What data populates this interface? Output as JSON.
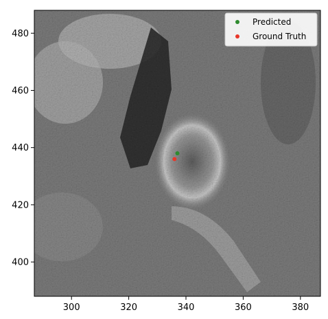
{
  "chart_data": {
    "type": "scatter",
    "title": "",
    "xlabel": "",
    "ylabel": "",
    "xlim": [
      287,
      387
    ],
    "ylim": [
      388,
      488
    ],
    "xticks": [
      300,
      320,
      340,
      360,
      380
    ],
    "yticks": [
      400,
      420,
      440,
      460,
      480
    ],
    "xtick_labels": [
      "300",
      "320",
      "340",
      "360",
      "380"
    ],
    "ytick_labels": [
      "400",
      "420",
      "440",
      "460",
      "480"
    ],
    "grid": false,
    "background": "grayscale noisy image (medical scan patch)",
    "legend_position": "top-right",
    "series": [
      {
        "name": "Predicted",
        "color": "#2e8b2e",
        "points": [
          [
            337,
            438
          ]
        ]
      },
      {
        "name": "Ground Truth",
        "color": "#e8372a",
        "points": [
          [
            336,
            436
          ]
        ]
      }
    ]
  }
}
